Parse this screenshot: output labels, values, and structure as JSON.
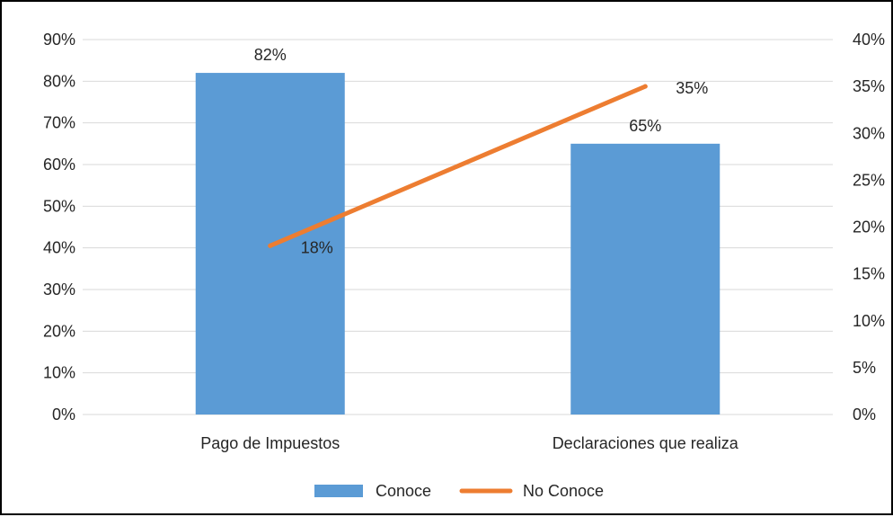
{
  "chart_data": {
    "type": "bar",
    "categories": [
      "Pago de Impuestos",
      "Declaraciones que realiza"
    ],
    "series": [
      {
        "name": "Conoce",
        "type": "bar",
        "axis": "left",
        "values": [
          0.82,
          0.65
        ],
        "labels": [
          "82%",
          "65%"
        ],
        "color": "#5B9BD5"
      },
      {
        "name": "No Conoce",
        "type": "line",
        "axis": "right",
        "values": [
          0.18,
          0.35
        ],
        "labels": [
          "18%",
          "35%"
        ],
        "color": "#ED7D31"
      }
    ],
    "y_left": {
      "lim": [
        0,
        0.9
      ],
      "ticks": [
        0,
        0.1,
        0.2,
        0.3,
        0.4,
        0.5,
        0.6,
        0.7,
        0.8,
        0.9
      ],
      "tick_labels": [
        "0%",
        "10%",
        "20%",
        "30%",
        "40%",
        "50%",
        "60%",
        "70%",
        "80%",
        "90%"
      ]
    },
    "y_right": {
      "lim": [
        0,
        0.4
      ],
      "ticks": [
        0,
        0.05,
        0.1,
        0.15,
        0.2,
        0.25,
        0.3,
        0.35,
        0.4
      ],
      "tick_labels": [
        "0%",
        "5%",
        "10%",
        "15%",
        "20%",
        "25%",
        "30%",
        "35%",
        "40%"
      ]
    },
    "grid": true,
    "legend": {
      "position": "bottom",
      "entries": [
        "Conoce",
        "No Conoce"
      ]
    },
    "title": "",
    "xlabel": "",
    "ylabel": ""
  },
  "colors": {
    "grid": "#D9D9D9",
    "text": "#262626",
    "border": "#000000"
  }
}
